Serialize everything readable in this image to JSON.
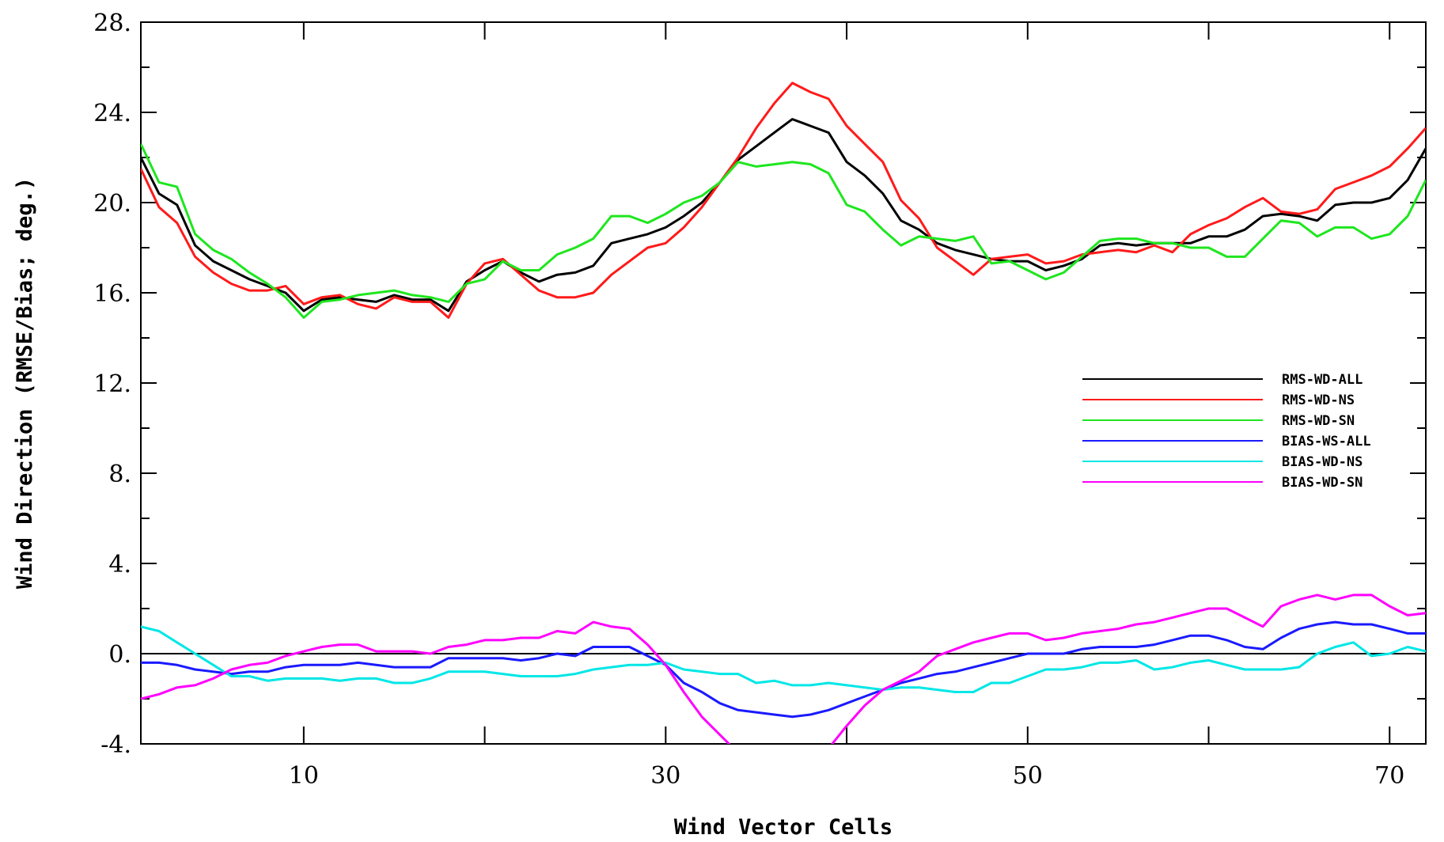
{
  "chart_data": {
    "type": "line",
    "title": "",
    "xlabel": "Wind Vector Cells",
    "ylabel": "Wind Direction (RMSE/Bias; deg.)",
    "xlim": [
      1,
      72
    ],
    "ylim": [
      -4,
      28
    ],
    "x_ticks": [
      10,
      30,
      50,
      70
    ],
    "x_tick_labels": [
      "10",
      "30",
      "50",
      "70"
    ],
    "y_ticks": [
      -4,
      0,
      4,
      8,
      12,
      16,
      20,
      24,
      28
    ],
    "y_tick_labels": [
      "-4.",
      "0.",
      "4.",
      "8.",
      "12.",
      "16.",
      "20.",
      "24.",
      "28."
    ],
    "reference_line": 0,
    "legend_position": "right",
    "grid": false,
    "x": [
      1,
      2,
      3,
      4,
      5,
      6,
      7,
      8,
      9,
      10,
      11,
      12,
      13,
      14,
      15,
      16,
      17,
      18,
      19,
      20,
      21,
      22,
      23,
      24,
      25,
      26,
      27,
      28,
      29,
      30,
      31,
      32,
      33,
      34,
      35,
      36,
      37,
      38,
      39,
      40,
      41,
      42,
      43,
      44,
      45,
      46,
      47,
      48,
      49,
      50,
      51,
      52,
      53,
      54,
      55,
      56,
      57,
      58,
      59,
      60,
      61,
      62,
      63,
      64,
      65,
      66,
      67,
      68,
      69,
      70,
      71,
      72
    ],
    "series": [
      {
        "name": "RMS-WD-ALL",
        "color": "#000000",
        "values": [
          22.0,
          20.4,
          19.9,
          18.1,
          17.4,
          17.0,
          16.6,
          16.3,
          16.0,
          15.2,
          15.7,
          15.8,
          15.7,
          15.6,
          15.9,
          15.7,
          15.7,
          15.2,
          16.5,
          17.0,
          17.4,
          16.9,
          16.5,
          16.8,
          16.9,
          17.2,
          18.2,
          18.4,
          18.6,
          18.9,
          19.4,
          20.0,
          20.9,
          21.9,
          22.5,
          23.1,
          23.7,
          23.4,
          23.1,
          21.8,
          21.2,
          20.4,
          19.2,
          18.8,
          18.2,
          17.9,
          17.7,
          17.5,
          17.4,
          17.4,
          17.0,
          17.2,
          17.5,
          18.1,
          18.2,
          18.1,
          18.2,
          18.2,
          18.2,
          18.5,
          18.5,
          18.8,
          19.4,
          19.5,
          19.4,
          19.2,
          19.9,
          20.0,
          20.0,
          20.2,
          21.0,
          22.4
        ]
      },
      {
        "name": "RMS-WD-NS",
        "color": "#ff1a1a",
        "values": [
          21.5,
          19.8,
          19.1,
          17.6,
          16.9,
          16.4,
          16.1,
          16.1,
          16.3,
          15.5,
          15.8,
          15.9,
          15.5,
          15.3,
          15.8,
          15.6,
          15.6,
          14.9,
          16.4,
          17.3,
          17.5,
          16.8,
          16.1,
          15.8,
          15.8,
          16.0,
          16.8,
          17.4,
          18.0,
          18.2,
          18.9,
          19.8,
          20.9,
          22.0,
          23.3,
          24.4,
          25.3,
          24.9,
          24.6,
          23.4,
          22.6,
          21.8,
          20.1,
          19.3,
          18.0,
          17.4,
          16.8,
          17.5,
          17.6,
          17.7,
          17.3,
          17.4,
          17.7,
          17.8,
          17.9,
          17.8,
          18.1,
          17.8,
          18.6,
          19.0,
          19.3,
          19.8,
          20.2,
          19.6,
          19.5,
          19.7,
          20.6,
          20.9,
          21.2,
          21.6,
          22.4,
          23.3
        ]
      },
      {
        "name": "RMS-WD-SN",
        "color": "#1ee61e",
        "values": [
          22.6,
          20.9,
          20.7,
          18.6,
          17.9,
          17.5,
          16.9,
          16.4,
          15.8,
          14.9,
          15.6,
          15.7,
          15.9,
          16.0,
          16.1,
          15.9,
          15.8,
          15.6,
          16.4,
          16.6,
          17.4,
          17.0,
          17.0,
          17.7,
          18.0,
          18.4,
          19.4,
          19.4,
          19.1,
          19.5,
          20.0,
          20.3,
          20.9,
          21.8,
          21.6,
          21.7,
          21.8,
          21.7,
          21.3,
          19.9,
          19.6,
          18.8,
          18.1,
          18.5,
          18.4,
          18.3,
          18.5,
          17.3,
          17.4,
          17.0,
          16.6,
          16.9,
          17.6,
          18.3,
          18.4,
          18.4,
          18.2,
          18.2,
          18.0,
          18.0,
          17.6,
          17.6,
          18.4,
          19.2,
          19.1,
          18.5,
          18.9,
          18.9,
          18.4,
          18.6,
          19.4,
          21.0
        ]
      },
      {
        "name": "BIAS-WS-ALL",
        "color": "#1a1aff",
        "values": [
          -0.4,
          -0.4,
          -0.5,
          -0.7,
          -0.8,
          -0.9,
          -0.8,
          -0.8,
          -0.6,
          -0.5,
          -0.5,
          -0.5,
          -0.4,
          -0.5,
          -0.6,
          -0.6,
          -0.6,
          -0.2,
          -0.2,
          -0.2,
          -0.2,
          -0.3,
          -0.2,
          0.0,
          -0.1,
          0.3,
          0.3,
          0.3,
          -0.1,
          -0.5,
          -1.3,
          -1.7,
          -2.2,
          -2.5,
          -2.6,
          -2.7,
          -2.8,
          -2.7,
          -2.5,
          -2.2,
          -1.9,
          -1.6,
          -1.3,
          -1.1,
          -0.9,
          -0.8,
          -0.6,
          -0.4,
          -0.2,
          0.0,
          0.0,
          0.0,
          0.2,
          0.3,
          0.3,
          0.3,
          0.4,
          0.6,
          0.8,
          0.8,
          0.6,
          0.3,
          0.2,
          0.7,
          1.1,
          1.3,
          1.4,
          1.3,
          1.3,
          1.1,
          0.9,
          0.9
        ]
      },
      {
        "name": "BIAS-WD-NS",
        "color": "#00e6e6",
        "values": [
          1.2,
          1.0,
          0.5,
          0.0,
          -0.5,
          -1.0,
          -1.0,
          -1.2,
          -1.1,
          -1.1,
          -1.1,
          -1.2,
          -1.1,
          -1.1,
          -1.3,
          -1.3,
          -1.1,
          -0.8,
          -0.8,
          -0.8,
          -0.9,
          -1.0,
          -1.0,
          -1.0,
          -0.9,
          -0.7,
          -0.6,
          -0.5,
          -0.5,
          -0.4,
          -0.7,
          -0.8,
          -0.9,
          -0.9,
          -1.3,
          -1.2,
          -1.4,
          -1.4,
          -1.3,
          -1.4,
          -1.5,
          -1.6,
          -1.5,
          -1.5,
          -1.6,
          -1.7,
          -1.7,
          -1.3,
          -1.3,
          -1.0,
          -0.7,
          -0.7,
          -0.6,
          -0.4,
          -0.4,
          -0.3,
          -0.7,
          -0.6,
          -0.4,
          -0.3,
          -0.5,
          -0.7,
          -0.7,
          -0.7,
          -0.6,
          0.0,
          0.3,
          0.5,
          -0.1,
          0.0,
          0.3,
          0.1
        ]
      },
      {
        "name": "BIAS-WD-SN",
        "color": "#ff00ff",
        "values": [
          -2.0,
          -1.8,
          -1.5,
          -1.4,
          -1.1,
          -0.7,
          -0.5,
          -0.4,
          -0.1,
          0.1,
          0.3,
          0.4,
          0.4,
          0.1,
          0.1,
          0.1,
          0.0,
          0.3,
          0.4,
          0.6,
          0.6,
          0.7,
          0.7,
          1.0,
          0.9,
          1.4,
          1.2,
          1.1,
          0.4,
          -0.5,
          -1.7,
          -2.8,
          -3.6,
          -4.4,
          -5.0,
          -5.3,
          -5.2,
          -5.0,
          -4.2,
          -3.2,
          -2.3,
          -1.6,
          -1.2,
          -0.8,
          -0.1,
          0.2,
          0.5,
          0.7,
          0.9,
          0.9,
          0.6,
          0.7,
          0.9,
          1.0,
          1.1,
          1.3,
          1.4,
          1.6,
          1.8,
          2.0,
          2.0,
          1.6,
          1.2,
          2.1,
          2.4,
          2.6,
          2.4,
          2.6,
          2.6,
          2.1,
          1.7,
          1.8
        ]
      }
    ]
  }
}
